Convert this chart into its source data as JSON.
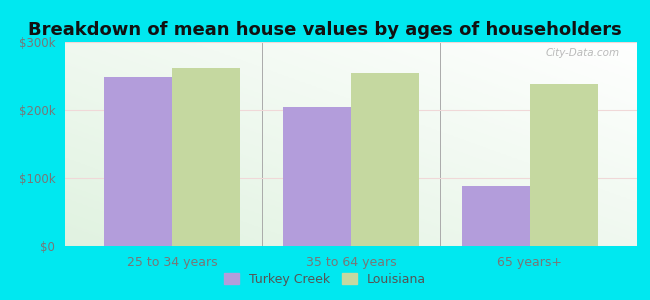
{
  "title": "Breakdown of mean house values by ages of householders",
  "categories": [
    "25 to 34 years",
    "35 to 64 years",
    "65 years+"
  ],
  "turkey_creek": [
    248000,
    205000,
    88000
  ],
  "louisiana": [
    262000,
    255000,
    238000
  ],
  "bar_color_tc": "#b39ddb",
  "bar_color_la": "#c5d8a0",
  "ylim": [
    0,
    300000
  ],
  "yticks": [
    0,
    100000,
    200000,
    300000
  ],
  "ytick_labels": [
    "$0",
    "$100k",
    "$200k",
    "$300k"
  ],
  "legend_tc": "Turkey Creek",
  "legend_la": "Louisiana",
  "bg_outer": "#00e8f0",
  "title_fontsize": 13,
  "bar_width": 0.38,
  "grid_color": "#e8e8e8",
  "tick_color": "#777777",
  "watermark": "City-Data.com"
}
